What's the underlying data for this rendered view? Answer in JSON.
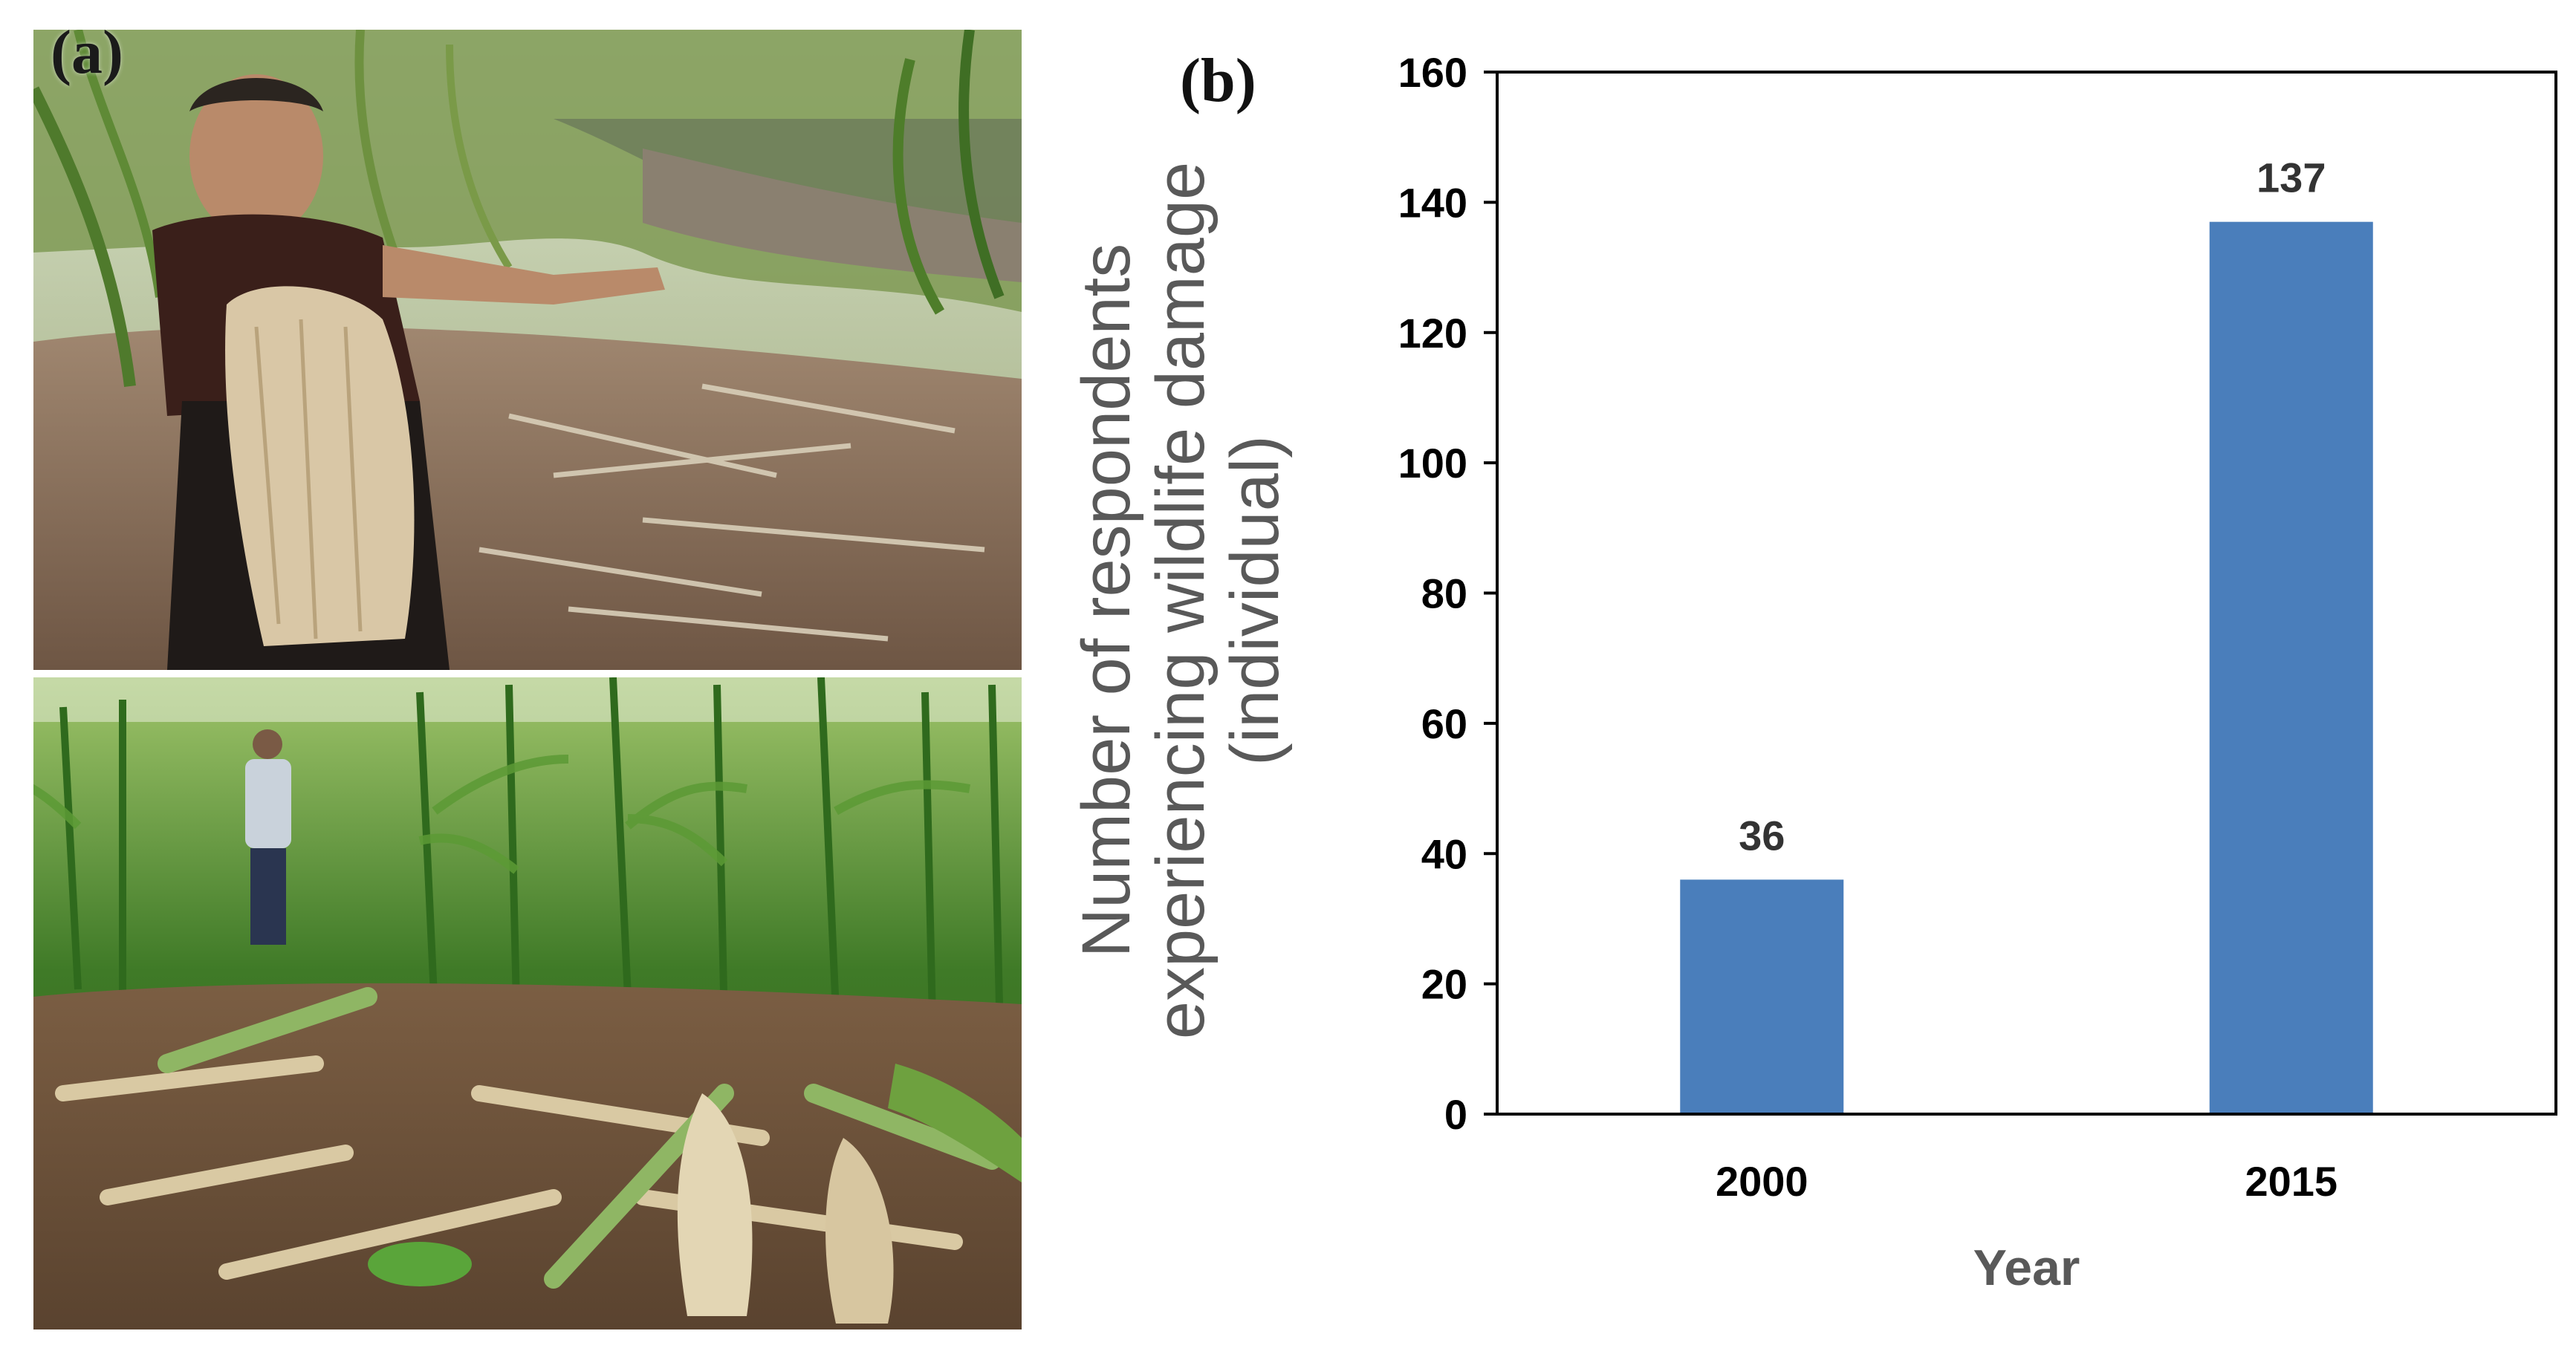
{
  "panel_labels": {
    "a": "(a)",
    "b": "(b)"
  },
  "photos": [
    {
      "name": "farmer-holding-damaged-corn"
    },
    {
      "name": "trampled-cornfield"
    }
  ],
  "chart_data": {
    "type": "bar",
    "categories": [
      "2000",
      "2015"
    ],
    "series": [
      {
        "values": [
          36,
          137
        ],
        "color": "#4a7ebb"
      }
    ],
    "data_labels": [
      "36",
      "137"
    ],
    "title": "",
    "xlabel": "Year",
    "ylabel_lines": [
      "Number of respondents",
      "experiencing wildlife damage",
      "(individual)"
    ],
    "ylim": [
      0,
      160
    ],
    "yticks": [
      0,
      20,
      40,
      60,
      80,
      100,
      120,
      140,
      160
    ],
    "grid": false,
    "legend": "none"
  }
}
